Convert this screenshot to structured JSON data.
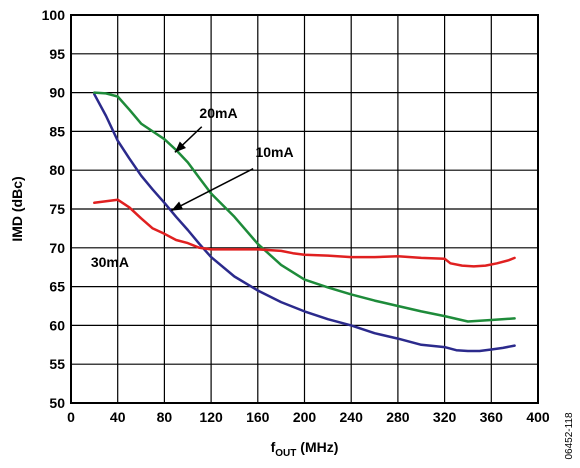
{
  "chart_data": {
    "type": "line",
    "xlabel": {
      "main": "f",
      "sub": "OUT",
      "unit": " (MHz)"
    },
    "ylabel": "IMD (dBc)",
    "xlim": [
      0,
      400
    ],
    "ylim": [
      50,
      100
    ],
    "xticks": [
      0,
      40,
      80,
      120,
      160,
      200,
      240,
      280,
      320,
      360,
      400
    ],
    "yticks": [
      50,
      55,
      60,
      65,
      70,
      75,
      80,
      85,
      90,
      95,
      100
    ],
    "grid": true,
    "figure_id": "06452-118",
    "series": [
      {
        "name": "10mA",
        "color": "#2b2a8c",
        "x": [
          20,
          30,
          40,
          50,
          60,
          70,
          80,
          90,
          100,
          110,
          120,
          140,
          160,
          180,
          200,
          220,
          240,
          260,
          280,
          300,
          320,
          330,
          340,
          350,
          360,
          370,
          380
        ],
        "y": [
          89.8,
          87.0,
          83.8,
          81.5,
          79.3,
          77.5,
          75.8,
          74.0,
          72.3,
          70.5,
          68.8,
          66.3,
          64.5,
          63.0,
          61.8,
          60.8,
          60.0,
          59.0,
          58.3,
          57.5,
          57.2,
          56.8,
          56.7,
          56.7,
          56.9,
          57.1,
          57.4
        ]
      },
      {
        "name": "20mA",
        "color": "#1e8b3a",
        "x": [
          20,
          30,
          40,
          50,
          60,
          70,
          80,
          90,
          100,
          110,
          120,
          140,
          160,
          180,
          200,
          220,
          240,
          260,
          280,
          300,
          320,
          340,
          360,
          380
        ],
        "y": [
          90.0,
          89.9,
          89.5,
          87.8,
          86.0,
          85.0,
          84.0,
          82.6,
          81.0,
          79.0,
          77.0,
          74.0,
          70.5,
          67.8,
          65.9,
          64.9,
          64.0,
          63.2,
          62.5,
          61.8,
          61.2,
          60.5,
          60.7,
          60.9
        ]
      },
      {
        "name": "30mA",
        "color": "#e02020",
        "x": [
          20,
          30,
          40,
          50,
          60,
          70,
          80,
          90,
          100,
          110,
          120,
          140,
          160,
          180,
          190,
          200,
          220,
          240,
          260,
          280,
          300,
          320,
          325,
          335,
          345,
          355,
          365,
          375,
          380
        ],
        "y": [
          75.8,
          76.0,
          76.2,
          75.2,
          73.8,
          72.5,
          71.8,
          71.0,
          70.6,
          70.0,
          69.8,
          69.8,
          69.8,
          69.6,
          69.3,
          69.1,
          69.0,
          68.8,
          68.8,
          68.9,
          68.7,
          68.6,
          68.0,
          67.7,
          67.6,
          67.7,
          68.0,
          68.4,
          68.7
        ]
      }
    ],
    "annotations": [
      {
        "text": "20mA",
        "x": 110,
        "y": 86.7,
        "arrow_from": [
          112,
          85.6
        ],
        "arrow_to": [
          89,
          82.3
        ]
      },
      {
        "text": "10mA",
        "x": 158,
        "y": 81.7,
        "arrow_from": [
          156,
          80.2
        ],
        "arrow_to": [
          86,
          74.8
        ]
      },
      {
        "text": "30mA",
        "x": 17,
        "y": 67.5
      }
    ]
  }
}
